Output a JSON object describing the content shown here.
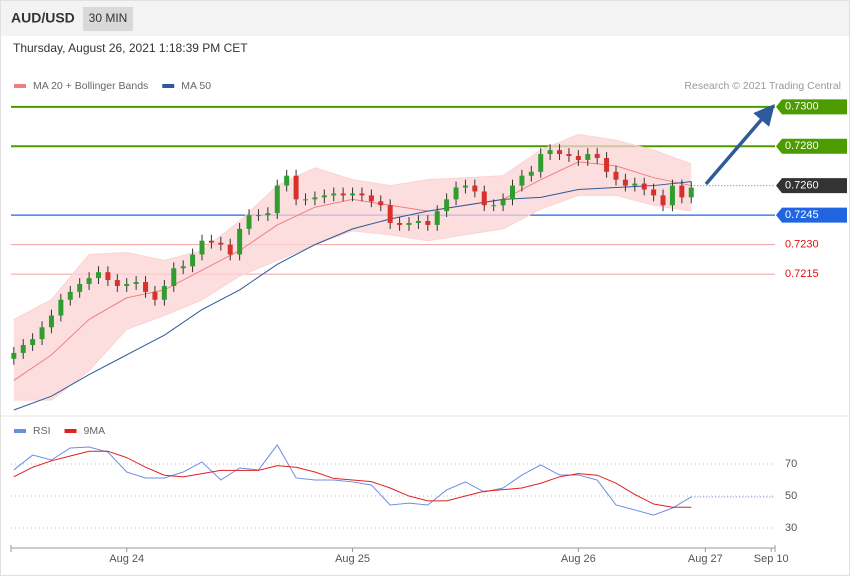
{
  "header": {
    "symbol": "AUD/USD",
    "timeframe": "30 MIN",
    "timestamp": "Thursday, August 26, 2021 1:18:39 PM CET",
    "credit": "Research © 2021 Trading Central"
  },
  "chart_data": [
    {
      "type": "candlestick",
      "up_color": "#2f9e2f",
      "down_color": "#d8302c",
      "wick_color": "#333333",
      "xlim": [
        -0.3,
        80.9
      ],
      "ylim": [
        0.7146,
        0.7306
      ],
      "x": [
        0,
        1,
        2,
        3,
        4,
        5,
        6,
        7,
        8,
        9,
        10,
        11,
        12,
        13,
        14,
        15,
        16,
        17,
        18,
        19,
        20,
        21,
        22,
        23,
        24,
        25,
        26,
        27,
        28,
        29,
        30,
        31,
        32,
        33,
        34,
        35,
        36,
        37,
        38,
        39,
        40,
        41,
        42,
        43,
        44,
        45,
        46,
        47,
        48,
        49,
        50,
        51,
        52,
        53,
        54,
        55,
        56,
        57,
        58,
        59,
        60,
        61,
        62,
        63,
        64,
        65,
        66,
        67,
        68,
        69,
        70,
        71,
        72
      ],
      "open": [
        0.7172,
        0.7175,
        0.7179,
        0.7182,
        0.7188,
        0.7194,
        0.7202,
        0.7206,
        0.721,
        0.7213,
        0.7216,
        0.7212,
        0.7209,
        0.721,
        0.7211,
        0.7206,
        0.7202,
        0.7209,
        0.7218,
        0.7219,
        0.7225,
        0.7232,
        0.7231,
        0.723,
        0.7225,
        0.7238,
        0.7245,
        0.7245,
        0.7246,
        0.726,
        0.7265,
        0.7253,
        0.7253,
        0.7254,
        0.7255,
        0.7256,
        0.7255,
        0.7256,
        0.7255,
        0.7252,
        0.725,
        0.7241,
        0.724,
        0.7241,
        0.7242,
        0.724,
        0.7247,
        0.7253,
        0.7259,
        0.726,
        0.7257,
        0.725,
        0.725,
        0.7253,
        0.726,
        0.7265,
        0.7267,
        0.7276,
        0.7278,
        0.7276,
        0.7275,
        0.7273,
        0.7276,
        0.7274,
        0.7267,
        0.7263,
        0.726,
        0.7261,
        0.7258,
        0.7255,
        0.725,
        0.726,
        0.7254
      ],
      "high": [
        0.7178,
        0.7182,
        0.7185,
        0.7191,
        0.7197,
        0.7205,
        0.7209,
        0.7213,
        0.7216,
        0.7219,
        0.7219,
        0.7215,
        0.7213,
        0.7214,
        0.7214,
        0.7209,
        0.7212,
        0.7221,
        0.7222,
        0.7228,
        0.7235,
        0.7235,
        0.7234,
        0.7233,
        0.7241,
        0.7248,
        0.7248,
        0.7249,
        0.7263,
        0.7268,
        0.7268,
        0.7256,
        0.7257,
        0.7258,
        0.7259,
        0.7259,
        0.7259,
        0.7259,
        0.7258,
        0.7255,
        0.7253,
        0.7244,
        0.7244,
        0.7245,
        0.7245,
        0.725,
        0.7256,
        0.7262,
        0.7263,
        0.7263,
        0.726,
        0.7253,
        0.7256,
        0.7263,
        0.7268,
        0.727,
        0.7279,
        0.7281,
        0.7281,
        0.7279,
        0.7278,
        0.7279,
        0.7279,
        0.7277,
        0.727,
        0.7266,
        0.7264,
        0.7264,
        0.7261,
        0.7258,
        0.7263,
        0.7263,
        0.7262
      ],
      "low": [
        0.7169,
        0.7172,
        0.7176,
        0.7179,
        0.7185,
        0.7191,
        0.7199,
        0.7203,
        0.7207,
        0.721,
        0.7209,
        0.7206,
        0.7206,
        0.7207,
        0.7203,
        0.7199,
        0.7199,
        0.7206,
        0.7215,
        0.7216,
        0.7222,
        0.7228,
        0.7227,
        0.7222,
        0.7222,
        0.7235,
        0.7242,
        0.7242,
        0.7243,
        0.7257,
        0.725,
        0.725,
        0.725,
        0.7251,
        0.7252,
        0.7252,
        0.7252,
        0.7252,
        0.7249,
        0.7247,
        0.7238,
        0.7237,
        0.7237,
        0.7238,
        0.7237,
        0.7237,
        0.7244,
        0.725,
        0.7256,
        0.7254,
        0.7247,
        0.7247,
        0.7247,
        0.725,
        0.7257,
        0.7262,
        0.7264,
        0.7273,
        0.7273,
        0.7272,
        0.727,
        0.727,
        0.7271,
        0.7264,
        0.726,
        0.7257,
        0.7257,
        0.7255,
        0.7252,
        0.7247,
        0.7247,
        0.7251,
        0.7251
      ],
      "close": [
        0.7175,
        0.7179,
        0.7182,
        0.7188,
        0.7194,
        0.7202,
        0.7206,
        0.721,
        0.7213,
        0.7216,
        0.7212,
        0.7209,
        0.721,
        0.7211,
        0.7206,
        0.7202,
        0.7209,
        0.7218,
        0.7219,
        0.7225,
        0.7232,
        0.7231,
        0.723,
        0.7225,
        0.7238,
        0.7245,
        0.7245,
        0.7246,
        0.726,
        0.7265,
        0.7253,
        0.7253,
        0.7254,
        0.7255,
        0.7256,
        0.7255,
        0.7256,
        0.7255,
        0.7252,
        0.725,
        0.7241,
        0.724,
        0.7241,
        0.7242,
        0.724,
        0.7247,
        0.7253,
        0.7259,
        0.726,
        0.7257,
        0.725,
        0.725,
        0.7253,
        0.726,
        0.7265,
        0.7267,
        0.7276,
        0.7278,
        0.7276,
        0.7275,
        0.7273,
        0.7276,
        0.7274,
        0.7267,
        0.7263,
        0.726,
        0.7261,
        0.7258,
        0.7255,
        0.725,
        0.726,
        0.7254,
        0.7259
      ],
      "overlays": [
        {
          "name": "MA 20 + Bollinger Bands",
          "color": "#f08080",
          "band_color": "#fcd3d3",
          "x": [
            0,
            4,
            8,
            12,
            16,
            20,
            24,
            28,
            32,
            36,
            40,
            44,
            48,
            52,
            56,
            60,
            64,
            68,
            72
          ],
          "values": [
            0.7161,
            0.7174,
            0.7192,
            0.7203,
            0.7207,
            0.7217,
            0.7227,
            0.724,
            0.7249,
            0.7253,
            0.725,
            0.7247,
            0.725,
            0.7253,
            0.7263,
            0.7272,
            0.727,
            0.7264,
            0.726
          ],
          "upper": [
            0.7192,
            0.7202,
            0.7225,
            0.7226,
            0.7222,
            0.7227,
            0.7242,
            0.726,
            0.7269,
            0.7263,
            0.726,
            0.7263,
            0.7264,
            0.7265,
            0.7278,
            0.7286,
            0.7283,
            0.7278,
            0.7271
          ],
          "lower": [
            0.7151,
            0.7151,
            0.7166,
            0.7187,
            0.7194,
            0.7202,
            0.7214,
            0.7222,
            0.723,
            0.7237,
            0.7235,
            0.7232,
            0.7235,
            0.7238,
            0.7248,
            0.7255,
            0.7255,
            0.725,
            0.7247
          ]
        },
        {
          "name": "MA 50",
          "color": "#2d5a9a",
          "x": [
            0,
            4,
            8,
            12,
            16,
            20,
            24,
            28,
            32,
            36,
            40,
            44,
            48,
            52,
            56,
            60,
            64,
            68,
            72
          ],
          "values": [
            0.7146,
            0.7153,
            0.7164,
            0.7174,
            0.7184,
            0.7197,
            0.7207,
            0.722,
            0.723,
            0.7238,
            0.7243,
            0.7247,
            0.725,
            0.7253,
            0.7254,
            0.7258,
            0.7259,
            0.726,
            0.7262
          ]
        }
      ],
      "levels": [
        {
          "value": 0.73,
          "label": "0.7300",
          "color": "#4c9c00",
          "line": "solid",
          "box": true
        },
        {
          "value": 0.728,
          "label": "0.7280",
          "color": "#4c9c00",
          "line": "solid",
          "box": true
        },
        {
          "value": 0.726,
          "label": "0.7260",
          "color": "#333333",
          "line": "dotted",
          "box": true
        },
        {
          "value": 0.7245,
          "label": "0.7245",
          "color": "#2166e0",
          "line": "solid",
          "box": true
        },
        {
          "value": 0.723,
          "label": "0.7230",
          "color": "#e01010",
          "line": "thin",
          "box": false
        },
        {
          "value": 0.7215,
          "label": "0.7215",
          "color": "#e01010",
          "line": "thin",
          "box": false
        }
      ]
    },
    {
      "type": "line",
      "xlim": [
        -0.3,
        80.9
      ],
      "ylim": [
        19.4,
        97.5
      ],
      "yticks": [
        70,
        50,
        30
      ],
      "grid": true,
      "xticks": [
        {
          "value": 12,
          "label": "Aug 24"
        },
        {
          "value": 36,
          "label": "Aug 25"
        },
        {
          "value": 60,
          "label": "Aug 26"
        },
        {
          "value": 73.5,
          "label": "Aug 27"
        },
        {
          "value": 80.5,
          "label": "Sep 10"
        }
      ],
      "series": [
        {
          "name": "RSI",
          "color": "#6b8de3",
          "x": [
            0,
            2,
            4,
            6,
            8,
            10,
            12,
            14,
            16,
            18,
            20,
            22,
            24,
            26,
            28,
            30,
            32,
            34,
            36,
            38,
            40,
            42,
            44,
            46,
            48,
            50,
            52,
            54,
            56,
            58,
            60,
            62,
            64,
            66,
            68,
            70,
            72
          ],
          "values": [
            66.3,
            75.6,
            72.5,
            80,
            80.6,
            77.5,
            65,
            61.3,
            61.3,
            65,
            71.3,
            60,
            67.5,
            66.3,
            81.9,
            61.3,
            60,
            60,
            58.8,
            56.9,
            44.4,
            45.6,
            44.4,
            53.8,
            58.8,
            52.5,
            55,
            63.1,
            69.4,
            63.1,
            63.1,
            60,
            44.4,
            41.3,
            38.1,
            42.5,
            49.4
          ]
        },
        {
          "name": "9MA",
          "color": "#e02020",
          "x": [
            0,
            2,
            4,
            6,
            8,
            10,
            12,
            14,
            16,
            18,
            20,
            22,
            24,
            26,
            28,
            30,
            32,
            34,
            36,
            38,
            40,
            42,
            44,
            46,
            48,
            50,
            52,
            54,
            56,
            58,
            60,
            62,
            64,
            66,
            68,
            70,
            72
          ],
          "values": [
            62,
            68,
            72,
            75,
            78,
            78,
            74,
            68,
            63,
            62,
            64,
            66,
            66,
            66,
            69,
            68,
            65,
            61,
            60,
            59,
            55,
            50,
            47,
            47,
            50,
            53,
            54,
            55,
            58,
            62,
            64,
            63,
            58,
            51,
            45,
            43,
            43
          ]
        }
      ]
    }
  ]
}
